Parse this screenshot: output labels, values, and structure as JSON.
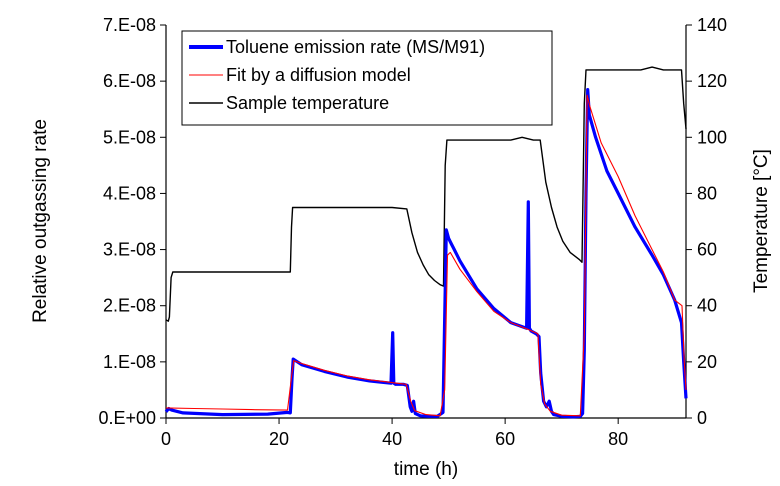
{
  "chart_data": {
    "type": "line",
    "title": "",
    "xlabel": "time (h)",
    "ylabel_left": "Relative outgassing rate",
    "ylabel_right": "Temperature [°C]",
    "xlim": [
      0,
      92
    ],
    "ylim_left": [
      0,
      7e-08
    ],
    "ylim_right": [
      0,
      140
    ],
    "x_ticks": [
      "0",
      "20",
      "40",
      "60",
      "80"
    ],
    "x_tick_values": [
      0,
      20,
      40,
      60,
      80
    ],
    "y_left_ticks": [
      "0.E+00",
      "1.E-08",
      "2.E-08",
      "3.E-08",
      "4.E-08",
      "5.E-08",
      "6.E-08",
      "7.E-08"
    ],
    "y_left_tick_values": [
      0,
      1e-08,
      2e-08,
      3e-08,
      4e-08,
      5e-08,
      6e-08,
      7e-08
    ],
    "y_right_ticks": [
      "0",
      "20",
      "40",
      "60",
      "80",
      "100",
      "120",
      "140"
    ],
    "y_right_tick_values": [
      0,
      20,
      40,
      60,
      80,
      100,
      120,
      140
    ],
    "grid": false,
    "legend_position": "top-left",
    "series": [
      {
        "name": "Toluene emission rate (MS/M91)",
        "axis": "left",
        "color": "#0000ff",
        "x": [
          0,
          0.5,
          1.0,
          3,
          10,
          18,
          21.5,
          22.0,
          22.3,
          22.5,
          24,
          28,
          32,
          36,
          39.8,
          40.1,
          40.3,
          40.6,
          42,
          42.7,
          43.2,
          43.5,
          43.8,
          44.1,
          45,
          46.5,
          48,
          49.0,
          49.3,
          49.6,
          50.0,
          50.5,
          51.0,
          51.5,
          52,
          55,
          58,
          61,
          63.8,
          64.1,
          64.3,
          64.6,
          65.5,
          66.0,
          66.3,
          66.8,
          67.3,
          67.8,
          68.2,
          68.6,
          70,
          72,
          73.3,
          73.7,
          74.0,
          74.3,
          74.6,
          74.9,
          76,
          78,
          80,
          83,
          86,
          88,
          90,
          91.2,
          91.6,
          92
        ],
        "y": [
          1.1e-09,
          1.7e-09,
          1.4e-09,
          9e-10,
          6e-10,
          7e-10,
          1e-09,
          9e-10,
          7e-09,
          1.05e-08,
          9.5e-09,
          8.3e-09,
          7.3e-09,
          6.6e-09,
          6.2e-09,
          1.52e-08,
          6.2e-09,
          6e-09,
          6e-09,
          5.8e-09,
          2e-09,
          1.2e-09,
          3e-09,
          8e-10,
          4e-10,
          3e-10,
          3e-10,
          1e-09,
          1.8e-08,
          3.35e-08,
          3.2e-08,
          3.1e-08,
          3e-08,
          2.9e-08,
          2.8e-08,
          2.3e-08,
          1.95e-08,
          1.7e-08,
          1.6e-08,
          3.85e-08,
          1.6e-08,
          1.55e-08,
          1.5e-08,
          1.45e-08,
          8e-09,
          3e-09,
          2e-09,
          3e-09,
          1.2e-09,
          6e-10,
          3e-10,
          2e-10,
          3e-10,
          8e-10,
          1.2e-08,
          4e-08,
          5.85e-08,
          5.4e-08,
          5e-08,
          4.4e-08,
          4e-08,
          3.4e-08,
          2.9e-08,
          2.55e-08,
          2.1e-08,
          1.7e-08,
          1e-08,
          3.5e-09
        ]
      },
      {
        "name": "Fit by a diffusion model",
        "axis": "left",
        "color": "#ff0000",
        "x": [
          0,
          5,
          10,
          15,
          21.5,
          22.3,
          22.6,
          24,
          28,
          32,
          36,
          40,
          42.5,
          43.3,
          44,
          46,
          48.5,
          49.3,
          49.8,
          50.3,
          52,
          55,
          58,
          61,
          64,
          65.8,
          66.3,
          67,
          68,
          70,
          73.3,
          74.0,
          74.5,
          75,
          77,
          80,
          83,
          86,
          88,
          90,
          91.3,
          91.7,
          92
        ],
        "y": [
          1.8e-09,
          1.7e-09,
          1.6e-09,
          1.5e-09,
          1.4e-09,
          8e-09,
          1.02e-08,
          9.7e-09,
          8.5e-09,
          7.5e-09,
          6.8e-09,
          6.3e-09,
          6e-09,
          3e-09,
          1.3e-09,
          6e-10,
          4e-10,
          5e-09,
          2.9e-08,
          2.95e-08,
          2.65e-08,
          2.25e-08,
          1.9e-08,
          1.7e-08,
          1.58e-08,
          1.5e-08,
          6e-09,
          2.5e-09,
          1.2e-09,
          5e-10,
          4e-10,
          1.5e-08,
          5.75e-08,
          5.55e-08,
          4.9e-08,
          4.3e-08,
          3.6e-08,
          3e-08,
          2.6e-08,
          2.1e-08,
          2e-08,
          1e-08,
          5e-09
        ]
      },
      {
        "name": "Sample temperature",
        "axis": "right",
        "color": "#000000",
        "x": [
          0,
          0.4,
          0.6,
          0.9,
          1.2,
          5,
          10,
          15,
          20,
          22.0,
          22.2,
          22.4,
          25,
          30,
          35,
          40,
          42.6,
          43.5,
          44.5,
          45.5,
          46.5,
          47.5,
          48.5,
          49.1,
          49.4,
          49.7,
          52,
          55,
          58,
          61,
          63,
          64,
          65,
          66.2,
          67.2,
          68.2,
          69.2,
          70.2,
          71.5,
          73.1,
          73.6,
          74.0,
          74.3,
          75,
          78,
          81,
          84,
          86,
          88,
          90,
          91.2,
          91.6,
          92
        ],
        "y": [
          35,
          34.5,
          36,
          50,
          52,
          52,
          52,
          52,
          52,
          52,
          68,
          75,
          75,
          75,
          75,
          75,
          74.5,
          66,
          59,
          54.5,
          51,
          49,
          47.5,
          47,
          90,
          99,
          99,
          99,
          99,
          99,
          100,
          99.5,
          99,
          99,
          84,
          75,
          68,
          63,
          59,
          56.5,
          55.5,
          112,
          124,
          124,
          124,
          124,
          124,
          125,
          124,
          124,
          124,
          112,
          103
        ]
      }
    ]
  }
}
